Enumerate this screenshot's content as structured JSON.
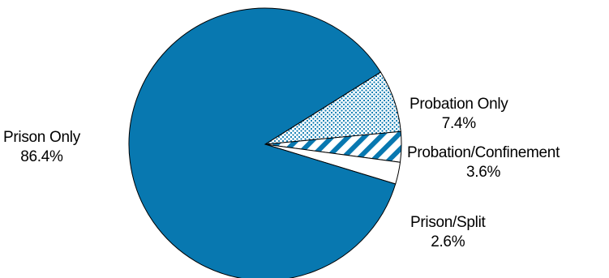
{
  "chart_data": {
    "type": "pie",
    "slices": [
      {
        "label": "Probation Only",
        "display_value": "7.4%",
        "value": 7.4,
        "color": "#0878b0",
        "fill": "dots"
      },
      {
        "label": "Probation/Confinement",
        "display_value": "3.6%",
        "value": 3.6,
        "color": "#0878b0",
        "fill": "stripes"
      },
      {
        "label": "Prison/Split",
        "display_value": "2.6%",
        "value": 2.6,
        "color": "#ffffff",
        "fill": "solid"
      },
      {
        "label": "Prison Only",
        "display_value": "86.4%",
        "value": 86.4,
        "color": "#0878b0",
        "fill": "solid"
      }
    ],
    "title": "",
    "legend": "none",
    "outline_color": "#000000"
  }
}
